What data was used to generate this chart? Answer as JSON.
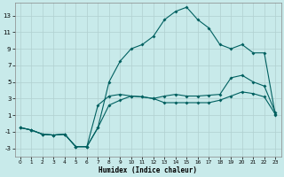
{
  "xlabel": "Humidex (Indice chaleur)",
  "bg_color": "#c8eaea",
  "grid_color": "#b0d0d0",
  "line_color": "#006060",
  "xlim": [
    -0.5,
    23.5
  ],
  "ylim": [
    -4,
    14.5
  ],
  "yticks": [
    -3,
    -1,
    1,
    3,
    5,
    7,
    9,
    11,
    13
  ],
  "xticks": [
    0,
    1,
    2,
    3,
    4,
    5,
    6,
    7,
    8,
    9,
    10,
    11,
    12,
    13,
    14,
    15,
    16,
    17,
    18,
    19,
    20,
    21,
    22,
    23
  ],
  "line1_x": [
    0,
    1,
    2,
    3,
    4,
    5,
    6,
    7,
    8,
    9,
    10,
    11,
    12,
    13,
    14,
    15,
    16,
    17,
    18,
    19,
    20,
    21,
    22,
    23
  ],
  "line1_y": [
    -0.5,
    -0.8,
    -1.3,
    -1.4,
    -1.3,
    -2.8,
    -2.8,
    -0.5,
    2.2,
    2.8,
    3.3,
    3.2,
    3.0,
    2.5,
    2.5,
    2.5,
    2.5,
    2.5,
    2.8,
    3.3,
    3.8,
    3.6,
    3.2,
    1.1
  ],
  "line2_x": [
    0,
    1,
    2,
    3,
    4,
    5,
    6,
    7,
    8,
    9,
    10,
    11,
    12,
    13,
    14,
    15,
    16,
    17,
    18,
    19,
    20,
    21,
    22,
    23
  ],
  "line2_y": [
    -0.5,
    -0.8,
    -1.3,
    -1.4,
    -1.3,
    -2.8,
    -2.8,
    2.2,
    3.3,
    3.5,
    3.3,
    3.2,
    3.0,
    3.3,
    3.5,
    3.3,
    3.3,
    3.4,
    3.5,
    5.5,
    5.8,
    5.0,
    4.5,
    1.3
  ],
  "line3_x": [
    0,
    1,
    2,
    3,
    4,
    5,
    6,
    7,
    8,
    9,
    10,
    11,
    12,
    13,
    14,
    15,
    16,
    17,
    18,
    19,
    20,
    21,
    22,
    23
  ],
  "line3_y": [
    -0.5,
    -0.8,
    -1.3,
    -1.4,
    -1.3,
    -2.8,
    -2.8,
    -0.5,
    5.0,
    7.5,
    9.0,
    9.5,
    10.5,
    12.5,
    13.5,
    14.0,
    12.5,
    11.5,
    9.5,
    9.0,
    9.5,
    8.5,
    8.5,
    1.0
  ]
}
